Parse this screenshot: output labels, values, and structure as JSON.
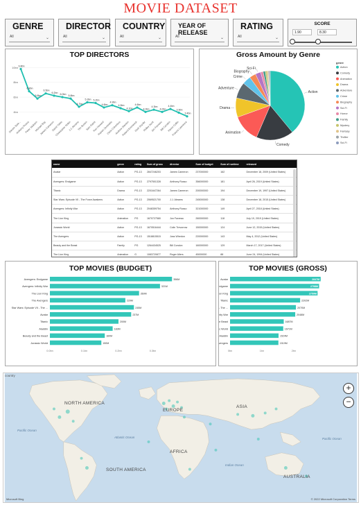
{
  "title": "MOVIE DATASET",
  "slicers": [
    {
      "label": "GENRE",
      "value": "All"
    },
    {
      "label": "DIRECTOR",
      "value": "All"
    },
    {
      "label": "COUNTRY",
      "value": "All"
    },
    {
      "label": "YEAR OF RELEASE",
      "value": "All"
    },
    {
      "label": "RATING",
      "value": "All"
    }
  ],
  "score": {
    "label": "SCORE",
    "min": "1.90",
    "max": "8.30",
    "low_frac": 0.0,
    "high_frac": 0.42
  },
  "top_directors": {
    "title": "TOP DIRECTORS",
    "chart_data": {
      "type": "line",
      "categories": [
        "Steven Spie...",
        "Anthony Russo",
        "Peter Jackson",
        "Michael Bay",
        "James Cameron",
        "David Yates",
        "Christopher Nolan",
        "J.J. Abrams",
        "Tim Burton",
        "Sam Raimi",
        "Ron Howard",
        "Robert Zemeckis",
        "Chris Columbus",
        "Andrew Stanton",
        "Roland Emmerich",
        "Zack Snyder",
        "Ridley Scott",
        "Jon Favreau",
        "Bill Condon",
        "Pierre Coffin",
        "Francis Lawrence"
      ],
      "values": [
        9.8,
        6.8,
        5.8,
        6.5,
        6.2,
        6.0,
        5.8,
        4.7,
        5.3,
        5.2,
        4.6,
        4.9,
        4.5,
        4.1,
        4.6,
        4.0,
        4.3,
        4.0,
        4.4,
        3.9,
        3.4
      ],
      "labels": [
        "9.8bn",
        "6.8bn",
        "5.8bn",
        "6.5bn",
        "6.2bn",
        "6.0bn",
        "5.8bn",
        "4.7bn",
        "5.3bn",
        "5.2bn",
        "4.6bn",
        "4.9bn",
        "4.5bn",
        "4.1bn",
        "4.6bn",
        "4.0bn",
        "4.3bn",
        "4.0bn",
        "4.4bn",
        "3.9bn",
        "3.4bn"
      ],
      "yticks": [
        "10bn",
        "8bn",
        "6bn",
        "4bn"
      ],
      "ylim": [
        3,
        10.5
      ]
    }
  },
  "gross_genre": {
    "title": "Gross Amount by Genre",
    "legend_title": "genre",
    "chart_data": {
      "type": "pie",
      "labels": [
        "Action",
        "Comedy",
        "Animation",
        "Drama",
        "Adventure",
        "Crime",
        "Biography",
        "Sci-Fi",
        "Horror",
        "Family",
        "Mystery",
        "Fantasy",
        "Thriller",
        "Sci-Fi"
      ],
      "values": [
        39,
        17.5,
        13,
        9,
        7.5,
        4,
        3,
        2.5,
        1.2,
        1,
        0.8,
        0.6,
        0.5,
        0.4
      ],
      "colors": [
        "#25c4b5",
        "#383c41",
        "#fb5a56",
        "#f0c42a",
        "#5b6870",
        "#60c3ea",
        "#f58a55",
        "#b575c4",
        "#e88aa8",
        "#3f9b89",
        "#c6c46b",
        "#e0c38a",
        "#9aa3a8",
        "#8d9cbd"
      ]
    }
  },
  "table": {
    "headers": [
      "name",
      "genre",
      "rating",
      "Sum of gross",
      "director",
      "Sum of budget",
      "Sum of runtime",
      "released"
    ],
    "rows": [
      [
        "Avatar",
        "Action",
        "PG-13",
        "2847246203",
        "James Cameron",
        "237000000",
        "162",
        "December 18, 2009 (United States)"
      ],
      [
        "Avengers: Endgame",
        "Action",
        "PG-13",
        "2797501328",
        "Anthony Russo",
        "356000000",
        "181",
        "April 26, 2019 (United States)"
      ],
      [
        "Titanic",
        "Drama",
        "PG-13",
        "2201647264",
        "James Cameron",
        "200000000",
        "194",
        "December 19, 1997 (United States)"
      ],
      [
        "Star Wars: Episode VII - The Force Awakens",
        "Action",
        "PG-13",
        "2069521700",
        "J.J. Abrams",
        "245000000",
        "138",
        "December 18, 2015 (United States)"
      ],
      [
        "Avengers: Infinity War",
        "Action",
        "PG-13",
        "2048359754",
        "Anthony Russo",
        "321000000",
        "149",
        "April 27, 2018 (United States)"
      ],
      [
        "The Lion King",
        "Animation",
        "PG",
        "1670727580",
        "Jon Favreau",
        "260000000",
        "118",
        "July 19, 2019 (United States)"
      ],
      [
        "Jurassic World",
        "Action",
        "PG-13",
        "1670516444",
        "Colin Trevorrow",
        "150000000",
        "124",
        "June 12, 2015 (United States)"
      ],
      [
        "The Avengers",
        "Action",
        "PG-13",
        "1518815515",
        "Joss Whedon",
        "220000000",
        "143",
        "May 4, 2012 (United States)"
      ],
      [
        "Beauty and the Beast",
        "Family",
        "PG",
        "1264434525",
        "Bill Condon",
        "160000000",
        "129",
        "March 17, 2017 (United States)"
      ],
      [
        "The Lion King",
        "Animation",
        "G",
        "1083720877",
        "Roger Allers",
        "45000000",
        "88",
        "June 24, 1994 (United States)"
      ],
      [
        "Aladdin",
        "Adventure",
        "PG",
        "1050693953",
        "Guy Ritchie",
        "183000000",
        "128",
        "May 24, 2019 (United States)"
      ]
    ]
  },
  "top_budget": {
    "title": "TOP MOVIES (BUDGET)",
    "chart_data": {
      "type": "bar",
      "categories": [
        "Avengers: Endgame",
        "Avengers: Infinity War",
        "The Lion King",
        "The Avengers",
        "Star Wars: Episode VII - The ...",
        "Avatar",
        "Titanic",
        "Aladdin",
        "Beauty and the Beast",
        "Jurassic World"
      ],
      "values": [
        356,
        321,
        260,
        220,
        245,
        237,
        200,
        183,
        160,
        150
      ],
      "labels": [
        "356M",
        "321M",
        "260M",
        "220M",
        "245M",
        "237M",
        "200M",
        "183M",
        "160M",
        "150M"
      ],
      "xticks": [
        "0.0bn",
        "0.1bn",
        "0.2bn",
        "0.3bn"
      ],
      "xlim": [
        0,
        400
      ]
    }
  },
  "top_gross": {
    "title": "TOP MOVIES (GROSS)",
    "chart_data": {
      "type": "bar",
      "categories": [
        "Avatar",
        "Avengers: Endgame",
        "The Lion King",
        "Titanic",
        "Star Wars: Episode VII - The ...",
        "Avengers: Infinity War",
        "Beauty and the Beast",
        "Jurassic World",
        "Aladdin",
        "The Avengers"
      ],
      "values": [
        2847,
        2798,
        2750,
        2202,
        2070,
        2048,
        1687,
        1671,
        1524,
        1519
      ],
      "labels": [
        "2847M",
        "2798M",
        "2750M",
        "2202M",
        "2070M",
        "2048M",
        "1687M",
        "1671M",
        "1524M",
        "1519M"
      ],
      "xticks": [
        "0bn",
        "1bn",
        "2bn"
      ],
      "xlim": [
        0,
        3200
      ]
    }
  },
  "map": {
    "label": "country",
    "continents": [
      "NORTH AMERICA",
      "EUROPE",
      "ASIA",
      "AFRICA",
      "SOUTH AMERICA",
      "AUSTRALIA"
    ],
    "oceans": [
      "Pacific Ocean",
      "Atlantic Ocean",
      "Indian Ocean",
      "Pacific Ocean"
    ],
    "attribution_left": "Microsoft Bing",
    "attribution_right": "© 2022 Microsoft Corporation  Terms",
    "zoom_in": "+",
    "zoom_out": "−"
  }
}
